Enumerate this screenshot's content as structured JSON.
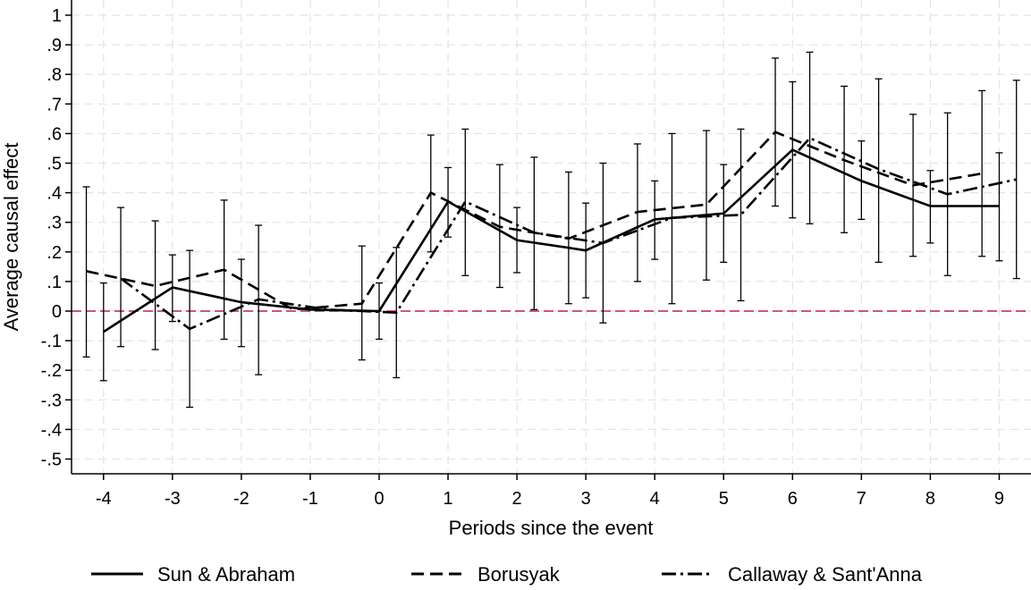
{
  "chart_data": {
    "type": "line",
    "title": "",
    "xlabel": "Periods since the event",
    "ylabel": "Average causal effect",
    "xlim": [
      -4.5,
      9.3
    ],
    "ylim": [
      -0.55,
      1.05
    ],
    "grid": true,
    "legend_position": "bottom",
    "x_ticks": [
      -4,
      -3,
      -2,
      -1,
      0,
      1,
      2,
      3,
      4,
      5,
      6,
      7,
      8,
      9
    ],
    "x_tick_labels": [
      "-4",
      "-3",
      "-2",
      "-1",
      "0",
      "1",
      "2",
      "3",
      "4",
      "5",
      "6",
      "7",
      "8",
      "9"
    ],
    "y_ticks": [
      1,
      0.9,
      0.8,
      0.7,
      0.6,
      0.5,
      0.4,
      0.3,
      0.2,
      0.1,
      0,
      -0.1,
      -0.2,
      -0.3,
      -0.4,
      -0.5
    ],
    "y_tick_labels": [
      "1",
      ".9",
      ".8",
      ".7",
      ".6",
      ".5",
      ".4",
      ".3",
      ".2",
      ".1",
      "0",
      "-.1",
      "-.2",
      "-.3",
      "-.4",
      "-.5"
    ],
    "reference_line": {
      "y": 0,
      "color": "#c0204a"
    },
    "series": [
      {
        "name": "Sun & Abraham",
        "style": "solid",
        "color": "#000000",
        "points": [
          {
            "x": -4,
            "y": -0.07,
            "lo": -0.235,
            "hi": 0.095
          },
          {
            "x": -3,
            "y": 0.08,
            "lo": -0.035,
            "hi": 0.19
          },
          {
            "x": -2,
            "y": 0.03,
            "lo": -0.12,
            "hi": 0.175
          },
          {
            "x": -1,
            "y": 0.005
          },
          {
            "x": 0,
            "y": 0.0,
            "lo": -0.095,
            "hi": 0.095
          },
          {
            "x": 1,
            "y": 0.37,
            "lo": 0.25,
            "hi": 0.485
          },
          {
            "x": 2,
            "y": 0.24,
            "lo": 0.13,
            "hi": 0.35
          },
          {
            "x": 3,
            "y": 0.205,
            "lo": 0.045,
            "hi": 0.365
          },
          {
            "x": 4,
            "y": 0.31,
            "lo": 0.175,
            "hi": 0.44
          },
          {
            "x": 5,
            "y": 0.33,
            "lo": 0.165,
            "hi": 0.495
          },
          {
            "x": 6,
            "y": 0.545,
            "lo": 0.315,
            "hi": 0.775
          },
          {
            "x": 7,
            "y": 0.44,
            "lo": 0.31,
            "hi": 0.575
          },
          {
            "x": 8,
            "y": 0.355,
            "lo": 0.23,
            "hi": 0.475
          },
          {
            "x": 9,
            "y": 0.355,
            "lo": 0.17,
            "hi": 0.535
          }
        ]
      },
      {
        "name": "Borusyak",
        "style": "dash",
        "color": "#000000",
        "points": [
          {
            "x": -4.25,
            "y": 0.135,
            "lo": -0.155,
            "hi": 0.42
          },
          {
            "x": -3.25,
            "y": 0.085,
            "lo": -0.13,
            "hi": 0.305
          },
          {
            "x": -2.25,
            "y": 0.14,
            "lo": -0.095,
            "hi": 0.375
          },
          {
            "x": -1.25,
            "y": 0.005
          },
          {
            "x": -0.25,
            "y": 0.025,
            "lo": -0.165,
            "hi": 0.22
          },
          {
            "x": 0.75,
            "y": 0.4,
            "lo": 0.2,
            "hi": 0.595
          },
          {
            "x": 1.75,
            "y": 0.285,
            "lo": 0.08,
            "hi": 0.495
          },
          {
            "x": 2.75,
            "y": 0.245,
            "lo": 0.025,
            "hi": 0.47
          },
          {
            "x": 3.75,
            "y": 0.335,
            "lo": 0.1,
            "hi": 0.565
          },
          {
            "x": 4.75,
            "y": 0.36,
            "lo": 0.105,
            "hi": 0.61
          },
          {
            "x": 5.75,
            "y": 0.605,
            "lo": 0.355,
            "hi": 0.855
          },
          {
            "x": 6.75,
            "y": 0.51,
            "lo": 0.265,
            "hi": 0.76
          },
          {
            "x": 7.75,
            "y": 0.425,
            "lo": 0.185,
            "hi": 0.665
          },
          {
            "x": 8.75,
            "y": 0.465,
            "lo": 0.185,
            "hi": 0.745
          }
        ]
      },
      {
        "name": "Callaway & Sant'Anna",
        "style": "dashdot",
        "color": "#000000",
        "points": [
          {
            "x": -3.75,
            "y": 0.11,
            "lo": -0.12,
            "hi": 0.35
          },
          {
            "x": -2.75,
            "y": -0.06,
            "lo": -0.325,
            "hi": 0.205
          },
          {
            "x": -1.75,
            "y": 0.04,
            "lo": -0.215,
            "hi": 0.29
          },
          {
            "x": -0.75,
            "y": 0.005
          },
          {
            "x": 0.25,
            "y": -0.005,
            "lo": -0.225,
            "hi": 0.215
          },
          {
            "x": 1.25,
            "y": 0.37,
            "lo": 0.12,
            "hi": 0.615
          },
          {
            "x": 2.25,
            "y": 0.265,
            "lo": 0.005,
            "hi": 0.52
          },
          {
            "x": 3.25,
            "y": 0.23,
            "lo": -0.04,
            "hi": 0.5
          },
          {
            "x": 4.25,
            "y": 0.315,
            "lo": 0.025,
            "hi": 0.6
          },
          {
            "x": 5.25,
            "y": 0.325,
            "lo": 0.035,
            "hi": 0.615
          },
          {
            "x": 6.25,
            "y": 0.585,
            "lo": 0.295,
            "hi": 0.875
          },
          {
            "x": 7.25,
            "y": 0.48,
            "lo": 0.165,
            "hi": 0.785
          },
          {
            "x": 8.25,
            "y": 0.395,
            "lo": 0.12,
            "hi": 0.67
          },
          {
            "x": 9.25,
            "y": 0.445,
            "lo": 0.11,
            "hi": 0.78
          }
        ]
      }
    ]
  }
}
